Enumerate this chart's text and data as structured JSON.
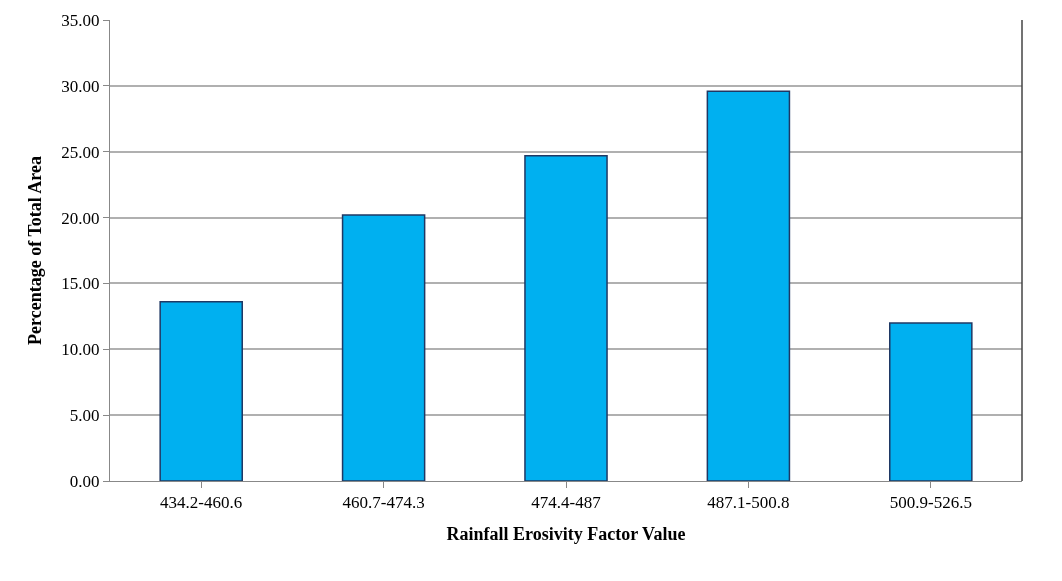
{
  "chart_data": {
    "type": "bar",
    "xlabel": "Rainfall Erosivity Factor Value",
    "ylabel": "Percentage of Total Area",
    "categories": [
      "434.2-460.6",
      "460.7-474.3",
      "474.4-487",
      "487.1-500.8",
      "500.9-526.5"
    ],
    "values": [
      13.6,
      20.2,
      24.7,
      29.6,
      12.0
    ],
    "color": "#00b0f0",
    "ylim": [
      0,
      35
    ],
    "yticks": [
      {
        "value": 0,
        "label": "0.00"
      },
      {
        "value": 5,
        "label": "5.00"
      },
      {
        "value": 10,
        "label": "10.00"
      },
      {
        "value": 15,
        "label": "15.00"
      },
      {
        "value": 20,
        "label": "20.00"
      },
      {
        "value": 25,
        "label": "25.00"
      },
      {
        "value": 30,
        "label": "30.00"
      },
      {
        "value": 35,
        "label": "35.00"
      }
    ],
    "grid": "y"
  }
}
